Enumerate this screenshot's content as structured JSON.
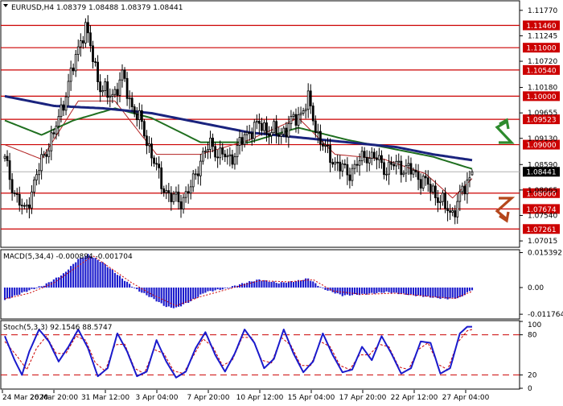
{
  "header": {
    "price": "EURUSD,H4  1.08379 1.08488 1.08379 1.08441",
    "macd": "MACD(5,34,4) -0.000894 -0.001704",
    "stoch": "Stoch(5,3,3) 92.1546 88.5747"
  },
  "colors": {
    "up_arrow": "#2e8b2e",
    "down_arrow": "#b5471c",
    "level_line": "#cc0000",
    "ma_long": "#1a237e",
    "ma_mid": "#1f6f1f",
    "ma_short": "#b22222",
    "candle": "#000000",
    "macd_hist": "#1a1acc",
    "macd_signal": "#cc0000",
    "stoch_main": "#1a1acc",
    "stoch_signal": "#cc0000",
    "last_price_bg": "#000000"
  },
  "chart_data": [
    {
      "type": "candlestick",
      "symbol": "EURUSD",
      "timeframe": "H4",
      "ohlc_last": [
        1.08379,
        1.08488,
        1.08379,
        1.08441
      ],
      "ylim": [
        1.069,
        1.1195
      ],
      "x_tick_labels": [
        "24 Mar 2020",
        "26 Mar 20:00",
        "31 Mar 12:00",
        "3 Apr 04:00",
        "7 Apr 20:00",
        "10 Apr 12:00",
        "15 Apr 04:00",
        "17 Apr 20:00",
        "22 Apr 12:00",
        "27 Apr 04:00"
      ],
      "y_tick_labels": [
        {
          "v": 1.1177,
          "label": "1.11770"
        },
        {
          "v": 1.11245,
          "label": "1.11245"
        },
        {
          "v": 1.1072,
          "label": "1.10720"
        },
        {
          "v": 1.1018,
          "label": "1.10180"
        },
        {
          "v": 1.09655,
          "label": "1.09655"
        },
        {
          "v": 1.0913,
          "label": "1.09130"
        },
        {
          "v": 1.0859,
          "label": "1.08590"
        },
        {
          "v": 1.08065,
          "label": "1.08065"
        },
        {
          "v": 1.0754,
          "label": "1.07540"
        },
        {
          "v": 1.07015,
          "label": "1.07015"
        }
      ],
      "levels": [
        {
          "v": 1.1146,
          "label": "1.11460"
        },
        {
          "v": 1.11,
          "label": "1.11000"
        },
        {
          "v": 1.1054,
          "label": "1.10540"
        },
        {
          "v": 1.1,
          "label": "1.10000"
        },
        {
          "v": 1.09523,
          "label": "1.09523"
        },
        {
          "v": 1.09,
          "label": "1.09000"
        },
        {
          "v": 1.08,
          "label": "1.08000"
        },
        {
          "v": 1.07674,
          "label": "1.07674"
        },
        {
          "v": 1.07261,
          "label": "1.07261"
        }
      ],
      "last_price": {
        "v": 1.08441,
        "label": "1.08441"
      },
      "close_path": [
        [
          0,
          1.0868
        ],
        [
          4,
          1.08
        ],
        [
          8,
          1.076
        ],
        [
          12,
          1.082
        ],
        [
          16,
          1.088
        ],
        [
          20,
          1.092
        ],
        [
          24,
          1.099
        ],
        [
          28,
          1.106
        ],
        [
          31,
          1.112
        ],
        [
          33,
          1.114
        ],
        [
          36,
          1.108
        ],
        [
          39,
          1.102
        ],
        [
          42,
          1.1
        ],
        [
          45,
          1.101
        ],
        [
          48,
          1.104
        ],
        [
          52,
          1.098
        ],
        [
          56,
          1.094
        ],
        [
          60,
          1.088
        ],
        [
          64,
          1.082
        ],
        [
          68,
          1.079
        ],
        [
          72,
          1.0785
        ],
        [
          76,
          1.081
        ],
        [
          80,
          1.087
        ],
        [
          84,
          1.09
        ],
        [
          88,
          1.088
        ],
        [
          92,
          1.087
        ],
        [
          96,
          1.09
        ],
        [
          100,
          1.093
        ],
        [
          104,
          1.094
        ],
        [
          108,
          1.093
        ],
        [
          112,
          1.092
        ],
        [
          116,
          1.094
        ],
        [
          120,
          1.096
        ],
        [
          124,
          1.099
        ],
        [
          128,
          1.092
        ],
        [
          132,
          1.088
        ],
        [
          136,
          1.086
        ],
        [
          140,
          1.084
        ],
        [
          144,
          1.086
        ],
        [
          148,
          1.088
        ],
        [
          152,
          1.087
        ],
        [
          156,
          1.085
        ],
        [
          160,
          1.086
        ],
        [
          164,
          1.085
        ],
        [
          168,
          1.084
        ],
        [
          172,
          1.082
        ],
        [
          176,
          1.08
        ],
        [
          180,
          1.077
        ],
        [
          183,
          1.076
        ],
        [
          186,
          1.079
        ],
        [
          189,
          1.0825
        ],
        [
          191,
          1.0844
        ]
      ],
      "overlays": {
        "ma_long": [
          [
            0,
            1.1
          ],
          [
            20,
            1.098
          ],
          [
            40,
            1.0975
          ],
          [
            60,
            1.0965
          ],
          [
            80,
            1.0945
          ],
          [
            100,
            1.0925
          ],
          [
            120,
            1.0915
          ],
          [
            140,
            1.0905
          ],
          [
            160,
            1.0895
          ],
          [
            175,
            1.088
          ],
          [
            191,
            1.0868
          ]
        ],
        "ma_mid": [
          [
            0,
            1.095
          ],
          [
            15,
            1.092
          ],
          [
            28,
            1.095
          ],
          [
            45,
            1.0975
          ],
          [
            60,
            1.0955
          ],
          [
            80,
            1.0905
          ],
          [
            100,
            1.0905
          ],
          [
            120,
            1.0935
          ],
          [
            140,
            1.091
          ],
          [
            160,
            1.089
          ],
          [
            175,
            1.0875
          ],
          [
            191,
            1.085
          ]
        ],
        "ma_short": [
          [
            0,
            1.09
          ],
          [
            15,
            1.087
          ],
          [
            30,
            1.099
          ],
          [
            45,
            1.099
          ],
          [
            62,
            1.088
          ],
          [
            80,
            1.088
          ],
          [
            100,
            1.091
          ],
          [
            120,
            1.0955
          ],
          [
            135,
            1.088
          ],
          [
            155,
            1.087
          ],
          [
            172,
            1.084
          ],
          [
            183,
            1.079
          ],
          [
            191,
            1.083
          ]
        ]
      }
    },
    {
      "type": "bar",
      "name": "MACD(5,34,4)",
      "ylim": [
        -0.0135,
        0.0163
      ],
      "y_tick_labels": [
        {
          "v": 0.015392,
          "label": "0.015392"
        },
        {
          "v": 0.0,
          "label": "0.00"
        },
        {
          "v": -0.011764,
          "label": "-0.011764"
        }
      ],
      "hist_path": [
        [
          0,
          -0.0055
        ],
        [
          8,
          -0.002
        ],
        [
          16,
          0.001
        ],
        [
          24,
          0.006
        ],
        [
          30,
          0.0125
        ],
        [
          34,
          0.0145
        ],
        [
          40,
          0.011
        ],
        [
          48,
          0.004
        ],
        [
          54,
          -0.001
        ],
        [
          60,
          -0.0045
        ],
        [
          66,
          -0.0085
        ],
        [
          70,
          -0.009
        ],
        [
          76,
          -0.006
        ],
        [
          82,
          -0.002
        ],
        [
          90,
          -0.0005
        ],
        [
          98,
          0.002
        ],
        [
          104,
          0.0035
        ],
        [
          112,
          0.002
        ],
        [
          120,
          0.003
        ],
        [
          124,
          0.004
        ],
        [
          130,
          -0.0005
        ],
        [
          138,
          -0.0035
        ],
        [
          146,
          -0.003
        ],
        [
          156,
          -0.002
        ],
        [
          164,
          -0.003
        ],
        [
          172,
          -0.004
        ],
        [
          180,
          -0.005
        ],
        [
          186,
          -0.0045
        ],
        [
          191,
          -0.0009
        ]
      ],
      "signal_path": [
        [
          0,
          -0.005
        ],
        [
          10,
          -0.0025
        ],
        [
          20,
          0.002
        ],
        [
          28,
          0.008
        ],
        [
          36,
          0.014
        ],
        [
          44,
          0.008
        ],
        [
          52,
          0.002
        ],
        [
          60,
          -0.003
        ],
        [
          70,
          -0.008
        ],
        [
          80,
          -0.004
        ],
        [
          92,
          -0.0005
        ],
        [
          104,
          0.003
        ],
        [
          116,
          0.0025
        ],
        [
          126,
          0.0035
        ],
        [
          134,
          -0.0015
        ],
        [
          146,
          -0.003
        ],
        [
          160,
          -0.0025
        ],
        [
          174,
          -0.004
        ],
        [
          184,
          -0.0048
        ],
        [
          191,
          -0.0017
        ]
      ]
    },
    {
      "type": "line",
      "name": "Stoch(5,3,3)",
      "ylim": [
        0,
        100
      ],
      "levels": [
        {
          "v": 80,
          "label": "80"
        },
        {
          "v": 20,
          "label": "20"
        }
      ],
      "y_tick_labels": [
        {
          "v": 100,
          "label": "100"
        },
        {
          "v": 80,
          "label": "80"
        },
        {
          "v": 20,
          "label": "20"
        },
        {
          "v": 0,
          "label": "0"
        }
      ],
      "main_path": [
        [
          0,
          78
        ],
        [
          4,
          42
        ],
        [
          7,
          20
        ],
        [
          10,
          55
        ],
        [
          14,
          88
        ],
        [
          18,
          70
        ],
        [
          22,
          40
        ],
        [
          26,
          62
        ],
        [
          30,
          88
        ],
        [
          34,
          60
        ],
        [
          38,
          18
        ],
        [
          42,
          30
        ],
        [
          46,
          82
        ],
        [
          50,
          55
        ],
        [
          54,
          18
        ],
        [
          58,
          25
        ],
        [
          62,
          72
        ],
        [
          66,
          40
        ],
        [
          70,
          16
        ],
        [
          74,
          25
        ],
        [
          78,
          60
        ],
        [
          82,
          84
        ],
        [
          86,
          50
        ],
        [
          90,
          25
        ],
        [
          94,
          52
        ],
        [
          98,
          88
        ],
        [
          102,
          68
        ],
        [
          106,
          30
        ],
        [
          110,
          44
        ],
        [
          114,
          88
        ],
        [
          118,
          52
        ],
        [
          122,
          24
        ],
        [
          126,
          40
        ],
        [
          130,
          82
        ],
        [
          134,
          50
        ],
        [
          138,
          24
        ],
        [
          142,
          28
        ],
        [
          146,
          62
        ],
        [
          150,
          42
        ],
        [
          154,
          78
        ],
        [
          158,
          52
        ],
        [
          162,
          22
        ],
        [
          166,
          30
        ],
        [
          170,
          70
        ],
        [
          174,
          68
        ],
        [
          178,
          22
        ],
        [
          182,
          30
        ],
        [
          186,
          82
        ],
        [
          189,
          92
        ],
        [
          191,
          92
        ]
      ],
      "signal_path": [
        [
          0,
          70
        ],
        [
          5,
          48
        ],
        [
          9,
          28
        ],
        [
          13,
          60
        ],
        [
          17,
          78
        ],
        [
          21,
          52
        ],
        [
          25,
          52
        ],
        [
          29,
          78
        ],
        [
          33,
          72
        ],
        [
          37,
          38
        ],
        [
          41,
          26
        ],
        [
          45,
          65
        ],
        [
          49,
          66
        ],
        [
          53,
          30
        ],
        [
          57,
          22
        ],
        [
          61,
          58
        ],
        [
          65,
          52
        ],
        [
          69,
          26
        ],
        [
          73,
          22
        ],
        [
          77,
          48
        ],
        [
          81,
          74
        ],
        [
          85,
          62
        ],
        [
          89,
          34
        ],
        [
          93,
          42
        ],
        [
          97,
          76
        ],
        [
          101,
          76
        ],
        [
          105,
          42
        ],
        [
          109,
          38
        ],
        [
          113,
          76
        ],
        [
          117,
          64
        ],
        [
          121,
          34
        ],
        [
          125,
          34
        ],
        [
          129,
          70
        ],
        [
          133,
          62
        ],
        [
          137,
          34
        ],
        [
          141,
          28
        ],
        [
          145,
          50
        ],
        [
          149,
          50
        ],
        [
          153,
          66
        ],
        [
          157,
          62
        ],
        [
          161,
          32
        ],
        [
          165,
          28
        ],
        [
          169,
          58
        ],
        [
          173,
          68
        ],
        [
          177,
          36
        ],
        [
          181,
          28
        ],
        [
          185,
          68
        ],
        [
          189,
          86
        ],
        [
          191,
          88
        ]
      ]
    }
  ]
}
